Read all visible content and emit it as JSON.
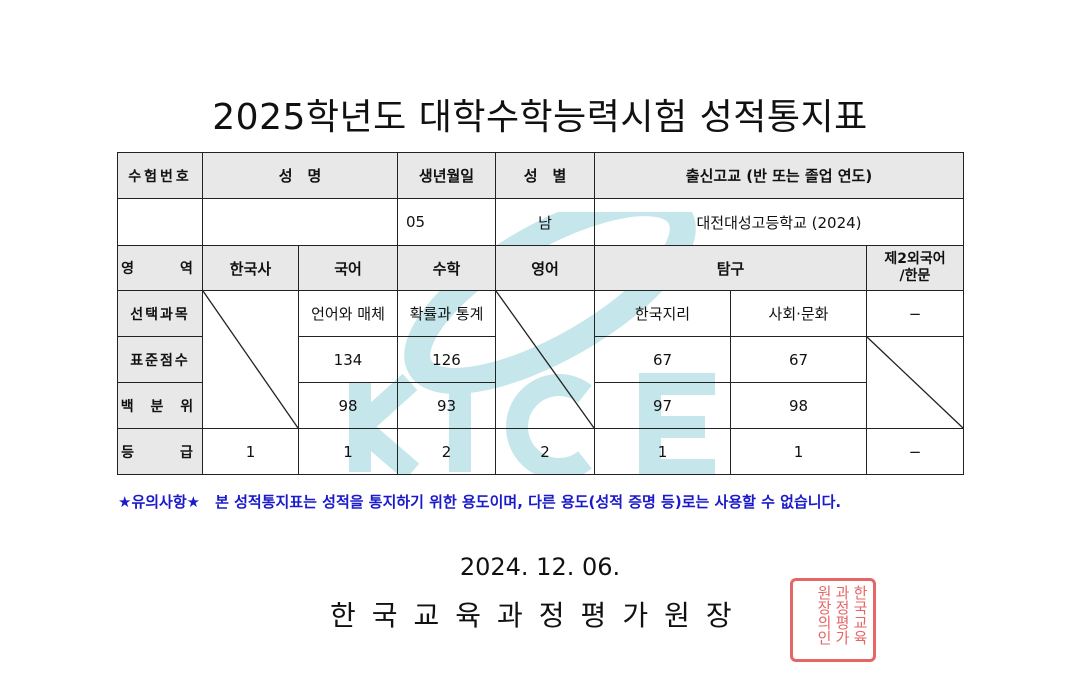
{
  "title": "2025학년도 대학수학능력시험 성적통지표",
  "header": {
    "exam_no": "수험번호",
    "name": "성　명",
    "birth": "생년월일",
    "gender": "성　별",
    "school": "출신고교 (반 또는 졸업 연도)"
  },
  "student": {
    "exam_no": "",
    "name": "",
    "birth": "05",
    "gender": "남",
    "school": "대전대성고등학교 (2024)"
  },
  "row_labels": {
    "area": "영　　역",
    "elective": "선택과목",
    "standard": "표준점수",
    "percentile": "백 분 위",
    "grade": "등　　급"
  },
  "subjects": {
    "history": "한국사",
    "korean": "국어",
    "math": "수학",
    "english": "영어",
    "inquiry": "탐구",
    "foreign": "제2외국어\n/한문"
  },
  "elective": {
    "korean": "언어와 매체",
    "math": "확률과 통계",
    "inquiry1": "한국지리",
    "inquiry2": "사회·문화",
    "foreign": "−"
  },
  "standard": {
    "korean": "134",
    "math": "126",
    "inquiry1": "67",
    "inquiry2": "67"
  },
  "percentile": {
    "korean": "98",
    "math": "93",
    "inquiry1": "97",
    "inquiry2": "98"
  },
  "grade": {
    "history": "1",
    "korean": "1",
    "math": "2",
    "english": "2",
    "inquiry1": "1",
    "inquiry2": "1",
    "foreign": "−"
  },
  "watermark": "KICE",
  "notice": "★유의사항★　본 성적통지표는 성적을 통지하기 위한 용도이며, 다른 용도(성적 증명 등)로는 사용할 수 없습니다.",
  "date": "2024. 12. 06.",
  "issuer": "한국교육과정평가원장",
  "seal_text": "한국교육과정평가원장의인",
  "colors": {
    "notice": "#1a1acc",
    "watermark": "#5bb8c8",
    "seal": "#dd3333"
  }
}
